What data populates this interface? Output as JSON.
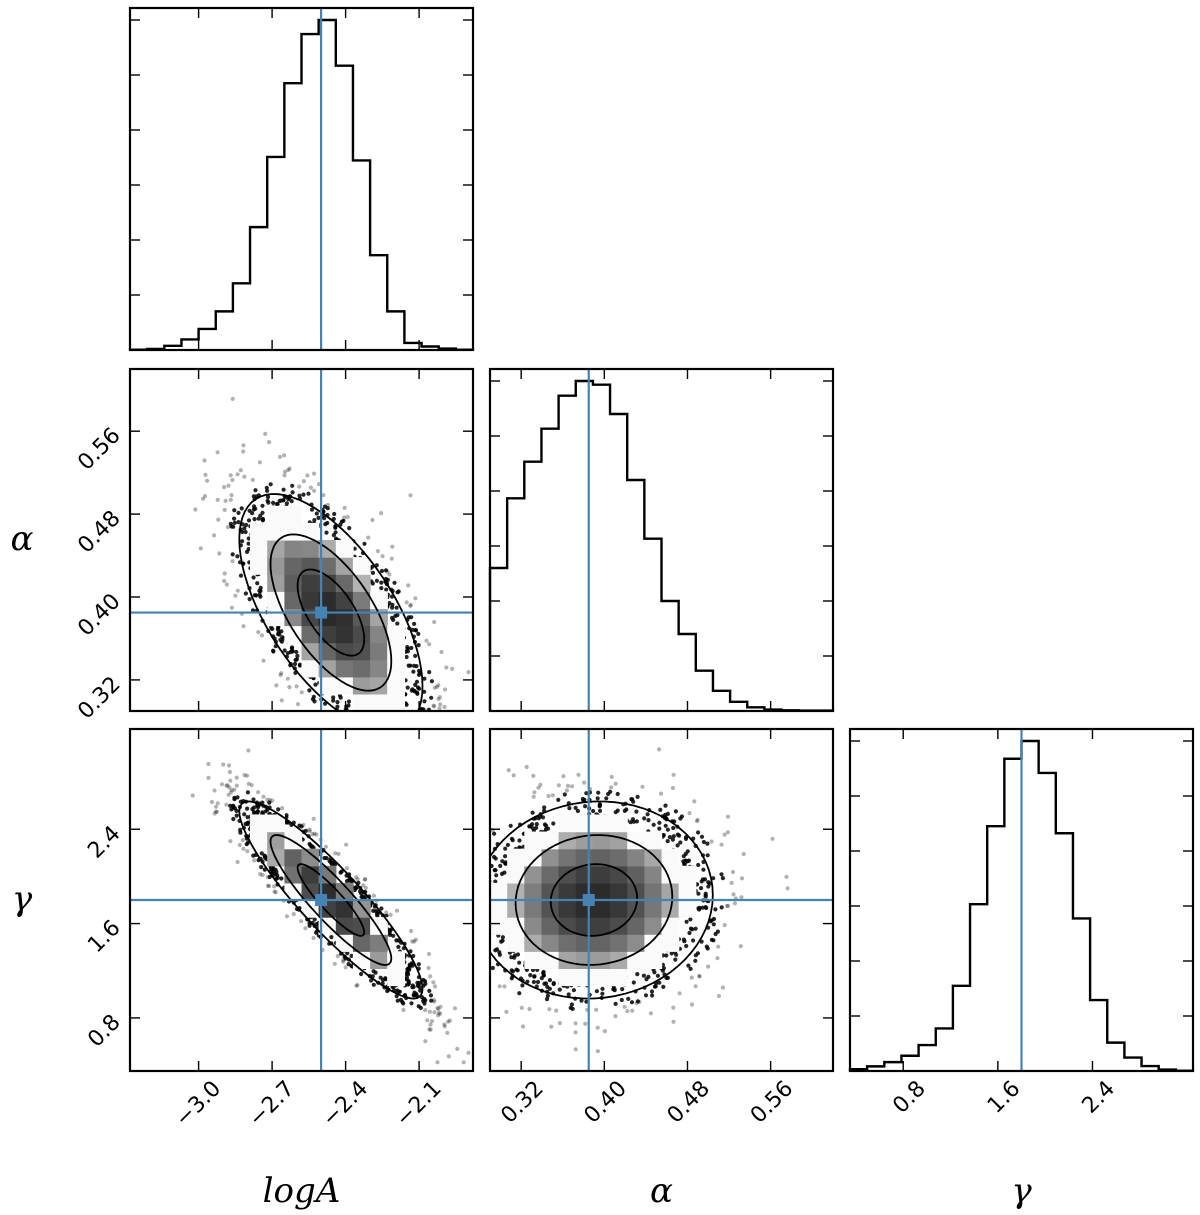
{
  "chart_data": {
    "type": "corner",
    "parameters": [
      {
        "name": "logA",
        "label": "logA",
        "range": [
          -3.28,
          -1.88
        ],
        "ticks": [
          -3.0,
          -2.7,
          -2.4,
          -2.1
        ],
        "tick_labels": [
          "−3.0",
          "−2.7",
          "−2.4",
          "−2.1"
        ],
        "truth": -2.5
      },
      {
        "name": "alpha",
        "label": "α",
        "range": [
          0.29,
          0.62
        ],
        "ticks": [
          0.32,
          0.4,
          0.48,
          0.56
        ],
        "tick_labels": [
          "0.32",
          "0.40",
          "0.48",
          "0.56"
        ],
        "truth": 0.385
      },
      {
        "name": "gamma",
        "label": "γ",
        "range": [
          0.35,
          3.25
        ],
        "ticks": [
          0.8,
          1.6,
          2.4
        ],
        "tick_labels": [
          "0.8",
          "1.6",
          "2.4"
        ],
        "truth": 1.8
      }
    ],
    "histograms": [
      {
        "parameter": "logA",
        "bin_edges": [
          -3.28,
          -3.21,
          -3.14,
          -3.07,
          -3.0,
          -2.93,
          -2.86,
          -2.79,
          -2.72,
          -2.65,
          -2.58,
          -2.51,
          -2.44,
          -2.37,
          -2.3,
          -2.23,
          -2.16,
          -2.09,
          -2.02,
          -1.95,
          -1.88
        ],
        "counts": [
          0.001,
          0.003,
          0.012,
          0.03,
          0.06,
          0.11,
          0.19,
          0.35,
          0.55,
          0.76,
          0.9,
          0.94,
          0.81,
          0.54,
          0.27,
          0.11,
          0.02,
          0.01,
          0.004,
          0.001
        ]
      },
      {
        "parameter": "alpha",
        "bin_edges": [
          0.29,
          0.3065,
          0.323,
          0.3395,
          0.356,
          0.3725,
          0.389,
          0.4055,
          0.422,
          0.4385,
          0.455,
          0.4715,
          0.488,
          0.5045,
          0.521,
          0.5375,
          0.554,
          0.5705,
          0.587,
          0.6035,
          0.62
        ],
        "counts": [
          0.39,
          0.58,
          0.68,
          0.77,
          0.86,
          0.9,
          0.89,
          0.81,
          0.63,
          0.47,
          0.3,
          0.21,
          0.11,
          0.055,
          0.025,
          0.01,
          0.004,
          0.002,
          0.001,
          0.001
        ]
      },
      {
        "parameter": "gamma",
        "bin_edges": [
          0.35,
          0.495,
          0.64,
          0.785,
          0.93,
          1.075,
          1.22,
          1.365,
          1.51,
          1.655,
          1.8,
          1.945,
          2.09,
          2.235,
          2.38,
          2.525,
          2.67,
          2.815,
          2.96,
          3.105,
          3.25
        ],
        "counts": [
          0.005,
          0.013,
          0.025,
          0.043,
          0.073,
          0.12,
          0.24,
          0.47,
          0.69,
          0.88,
          0.93,
          0.84,
          0.67,
          0.43,
          0.2,
          0.08,
          0.038,
          0.014,
          0.004,
          0.001
        ]
      }
    ],
    "joint_distributions": [
      {
        "x": "logA",
        "y": "alpha",
        "x_mean": -2.46,
        "y_mean": 0.385,
        "x_sd": 0.17,
        "y_sd": 0.052,
        "correlation": -0.62
      },
      {
        "x": "logA",
        "y": "gamma",
        "x_mean": -2.46,
        "y_mean": 1.8,
        "x_sd": 0.17,
        "y_sd": 0.38,
        "correlation": -0.9
      },
      {
        "x": "alpha",
        "y": "gamma",
        "x_mean": 0.39,
        "y_mean": 1.8,
        "x_sd": 0.052,
        "y_sd": 0.38,
        "correlation": 0.05
      }
    ],
    "truth_line_color": "#4682b4",
    "grid": false
  }
}
